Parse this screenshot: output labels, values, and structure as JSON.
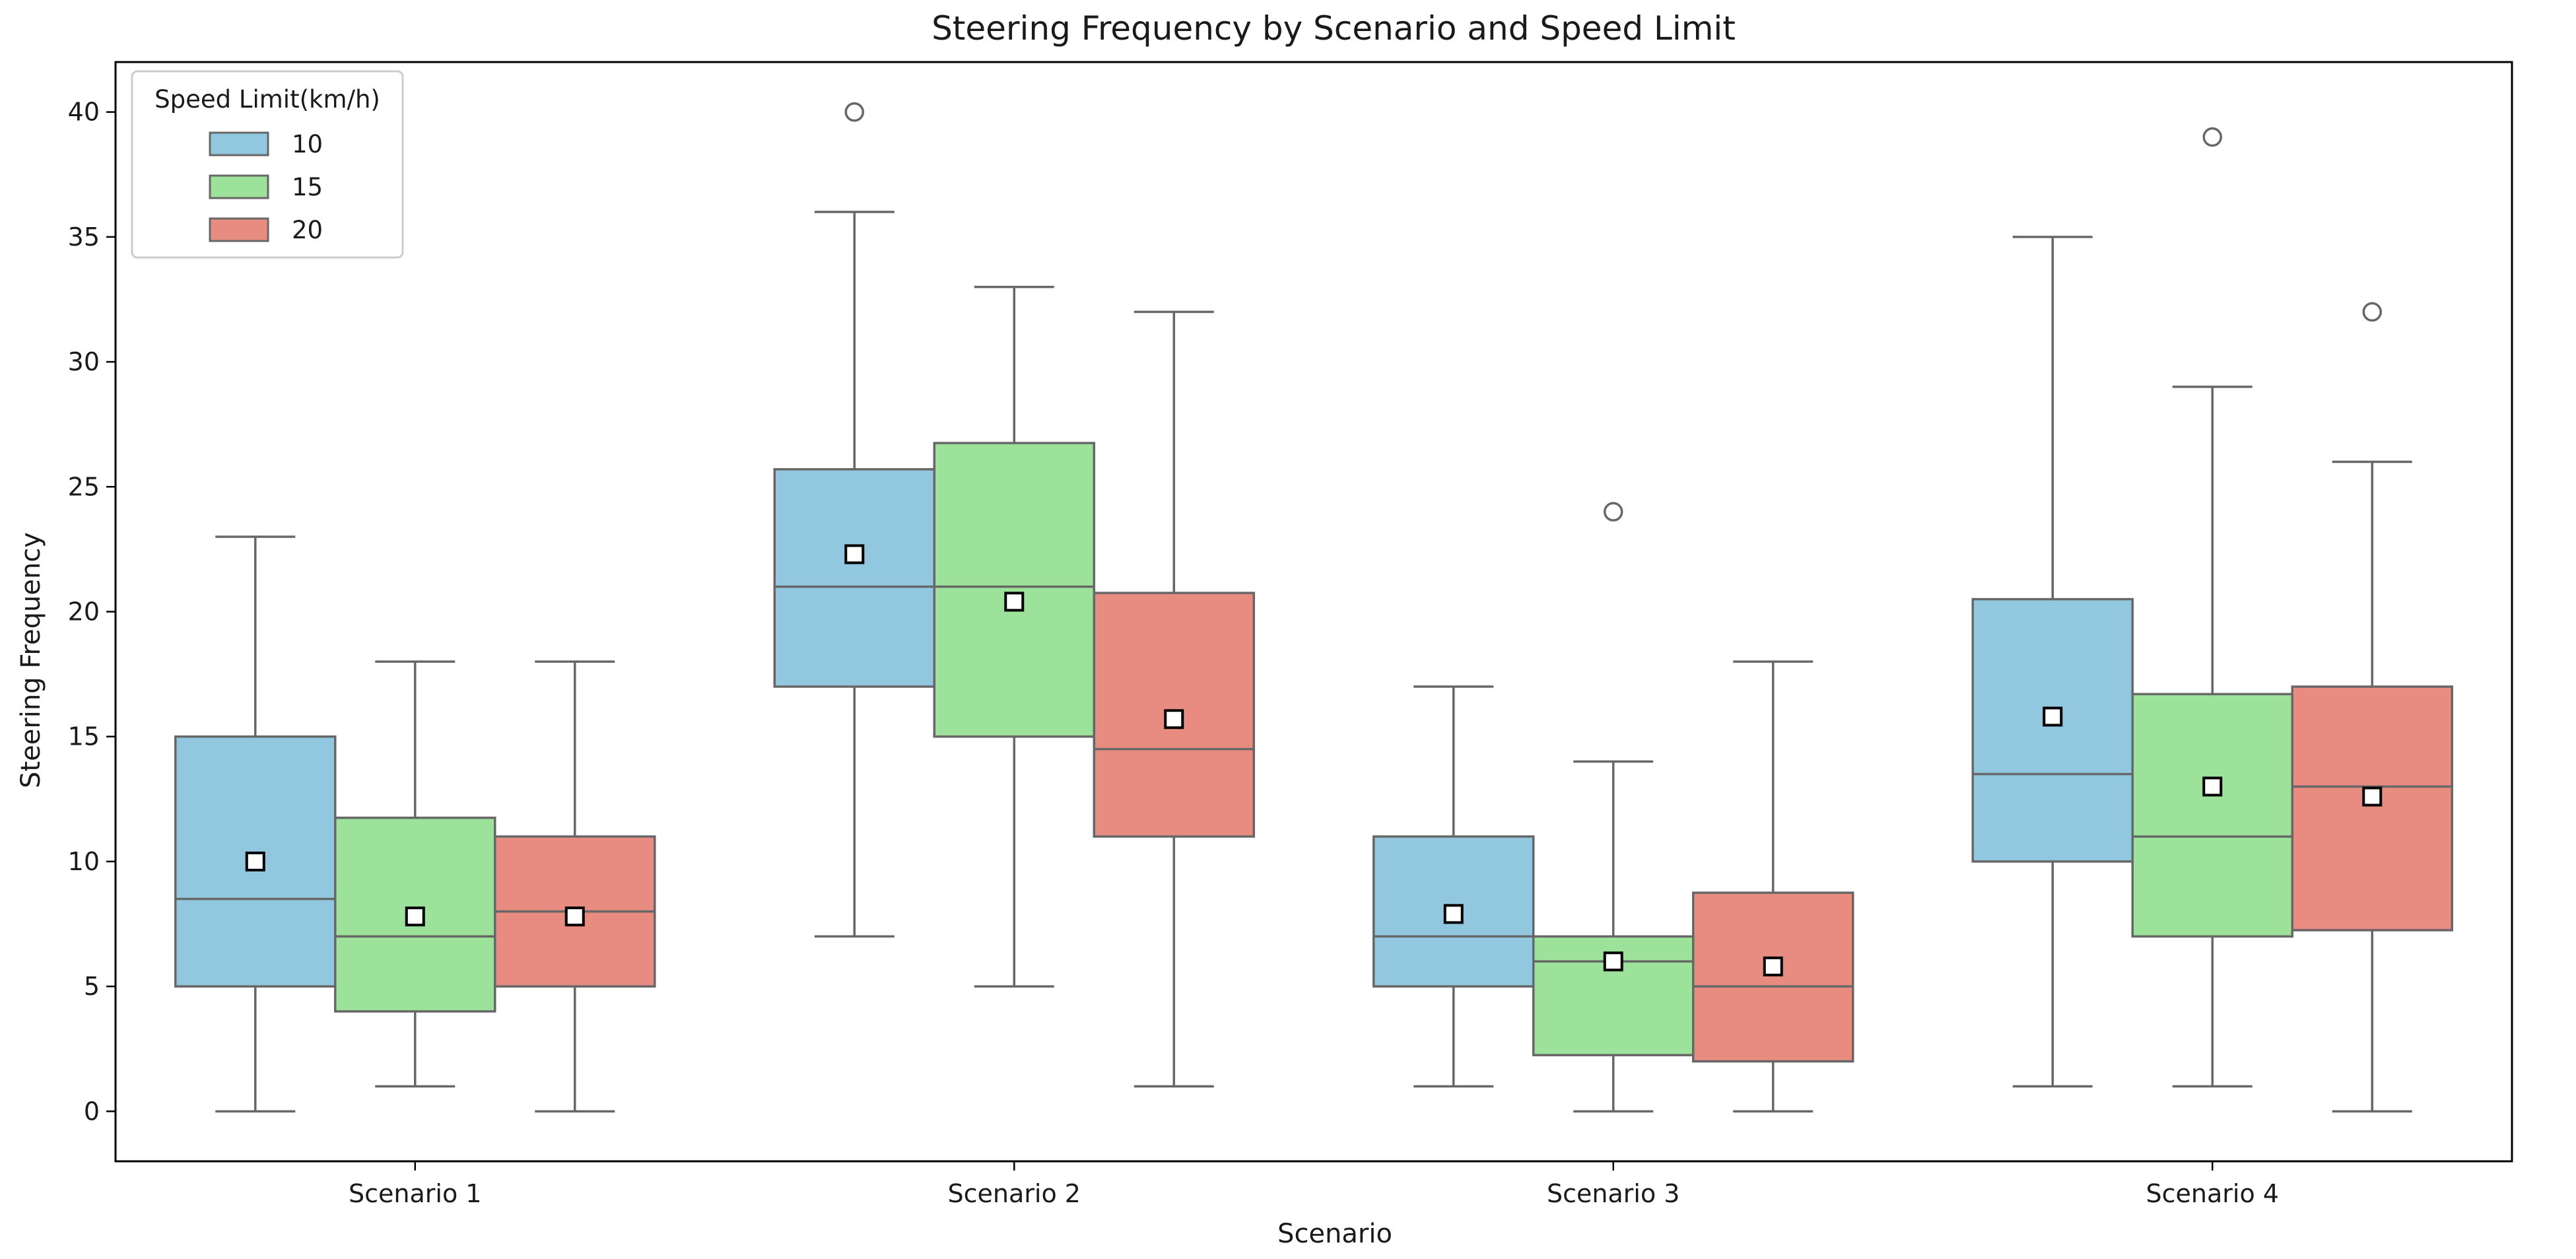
{
  "chart_data": {
    "type": "box",
    "title": "Steering Frequency by Scenario and Speed Limit",
    "xlabel": "Scenario",
    "ylabel": "Steering Frequency",
    "ylim": [
      -2,
      42
    ],
    "yticks": [
      0,
      5,
      10,
      15,
      20,
      25,
      30,
      35,
      40
    ],
    "categories": [
      "Scenario 1",
      "Scenario 2",
      "Scenario 3",
      "Scenario 4"
    ],
    "legend": {
      "title": "Speed Limit(km/h)",
      "position": "top-left",
      "entries": [
        "10",
        "15",
        "20"
      ]
    },
    "colors": {
      "10": "#92c8df",
      "15": "#9ce29a",
      "20": "#e88c81",
      "edge": "#676767",
      "mean_marker_face": "#ffffff",
      "mean_marker_edge": "#000000",
      "outlier": "#676767",
      "frame": "#000000",
      "background": "#ffffff"
    },
    "series": [
      {
        "name": "10",
        "boxes": [
          {
            "category": "Scenario 1",
            "whisker_low": 0,
            "q1": 5,
            "median": 8.5,
            "q3": 15,
            "whisker_high": 23,
            "mean": 10,
            "outliers": []
          },
          {
            "category": "Scenario 2",
            "whisker_low": 7,
            "q1": 17,
            "median": 21,
            "q3": 25.7,
            "whisker_high": 36,
            "mean": 22.3,
            "outliers": [
              40
            ]
          },
          {
            "category": "Scenario 3",
            "whisker_low": 1,
            "q1": 5,
            "median": 7,
            "q3": 11,
            "whisker_high": 17,
            "mean": 7.9,
            "outliers": []
          },
          {
            "category": "Scenario 4",
            "whisker_low": 1,
            "q1": 10,
            "median": 13.5,
            "q3": 20.5,
            "whisker_high": 35,
            "mean": 15.8,
            "outliers": []
          }
        ]
      },
      {
        "name": "15",
        "boxes": [
          {
            "category": "Scenario 1",
            "whisker_low": 1,
            "q1": 4,
            "median": 7,
            "q3": 11.75,
            "whisker_high": 18,
            "mean": 7.8,
            "outliers": []
          },
          {
            "category": "Scenario 2",
            "whisker_low": 5,
            "q1": 15,
            "median": 21,
            "q3": 26.75,
            "whisker_high": 33,
            "mean": 20.4,
            "outliers": []
          },
          {
            "category": "Scenario 3",
            "whisker_low": 0,
            "q1": 2.25,
            "median": 6,
            "q3": 7,
            "whisker_high": 14,
            "mean": 6,
            "outliers": [
              24
            ]
          },
          {
            "category": "Scenario 4",
            "whisker_low": 1,
            "q1": 7,
            "median": 11,
            "q3": 16.7,
            "whisker_high": 29,
            "mean": 13,
            "outliers": [
              39
            ]
          }
        ]
      },
      {
        "name": "20",
        "boxes": [
          {
            "category": "Scenario 1",
            "whisker_low": 0,
            "q1": 5,
            "median": 8,
            "q3": 11,
            "whisker_high": 18,
            "mean": 7.8,
            "outliers": []
          },
          {
            "category": "Scenario 2",
            "whisker_low": 1,
            "q1": 11,
            "median": 14.5,
            "q3": 20.75,
            "whisker_high": 32,
            "mean": 15.7,
            "outliers": []
          },
          {
            "category": "Scenario 3",
            "whisker_low": 0,
            "q1": 2,
            "median": 5,
            "q3": 8.75,
            "whisker_high": 18,
            "mean": 5.8,
            "outliers": []
          },
          {
            "category": "Scenario 4",
            "whisker_low": 0,
            "q1": 7.25,
            "median": 13,
            "q3": 17,
            "whisker_high": 26,
            "mean": 12.6,
            "outliers": [
              32
            ]
          }
        ]
      }
    ]
  }
}
